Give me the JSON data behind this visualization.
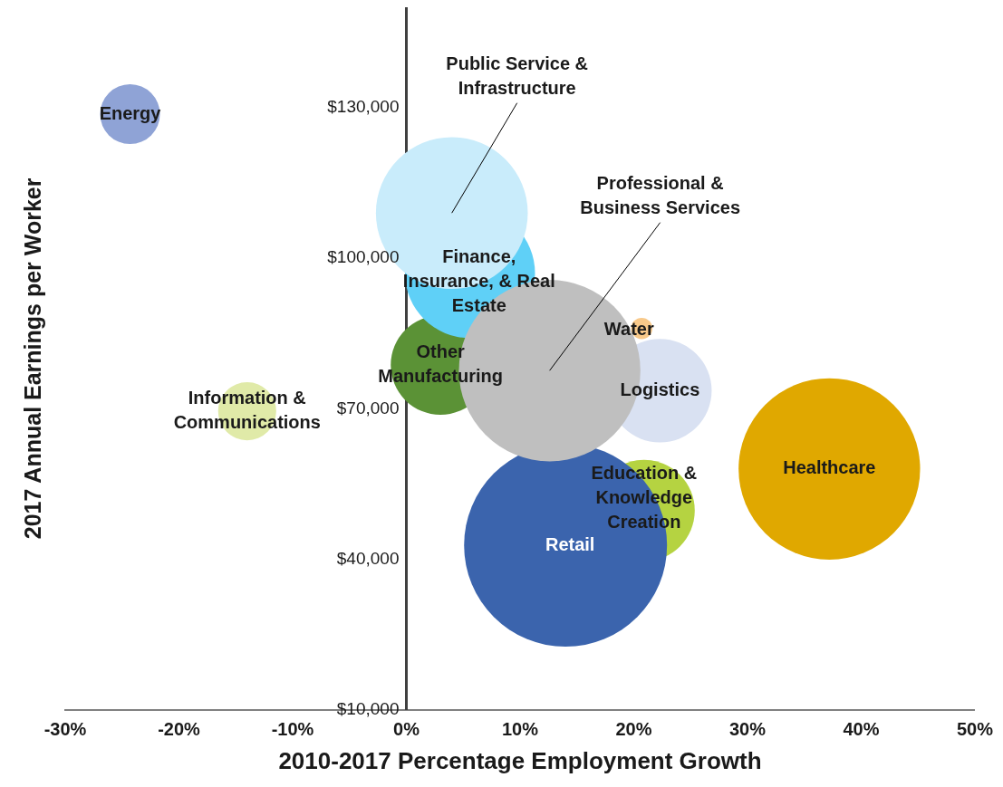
{
  "chart_data": {
    "type": "bubble",
    "xlabel": "2010-2017 Percentage Employment Growth",
    "ylabel": "2017 Annual Earnings per Worker",
    "xlim": [
      -30,
      50
    ],
    "xticks": [
      {
        "value": -30,
        "label": "-30%"
      },
      {
        "value": -20,
        "label": "-20%"
      },
      {
        "value": -10,
        "label": "-10%"
      },
      {
        "value": 0,
        "label": "0%"
      },
      {
        "value": 10,
        "label": "10%"
      },
      {
        "value": 20,
        "label": "20%"
      },
      {
        "value": 30,
        "label": "30%"
      },
      {
        "value": 40,
        "label": "40%"
      },
      {
        "value": 50,
        "label": "50%"
      }
    ],
    "ylim": [
      10000,
      150000
    ],
    "yticks": [
      {
        "value": 10000,
        "label": "$10,000"
      },
      {
        "value": 40000,
        "label": "$40,000"
      },
      {
        "value": 70000,
        "label": "$70,000"
      },
      {
        "value": 100000,
        "label": "$100,000"
      },
      {
        "value": 130000,
        "label": "$130,000"
      }
    ],
    "grid": false,
    "legend": false,
    "series": [
      {
        "name": "Energy",
        "color": "#8fa3d6",
        "x": [
          -24.3
        ],
        "values": [
          128700
        ],
        "sizes": [
          0.087
        ]
      },
      {
        "name": "Public Service & Infrastructure",
        "color": "#c9ecfb",
        "x": [
          4.0
        ],
        "values": [
          109000
        ],
        "sizes": [
          0.56
        ]
      },
      {
        "name": "Professional & Business Services",
        "color": "#bfbfbf",
        "x": [
          12.6
        ],
        "values": [
          77600
        ],
        "sizes": [
          0.8
        ]
      },
      {
        "name": "Finance, Insurance, & Real Estate",
        "color": "#5fd0f7",
        "x": [
          5.6
        ],
        "values": [
          97000
        ],
        "sizes": [
          0.41
        ]
      },
      {
        "name": "Water",
        "color": "#f8c98a",
        "x": [
          20.7
        ],
        "values": [
          86000
        ],
        "sizes": [
          0.011
        ]
      },
      {
        "name": "Logistics",
        "color": "#d9e1f2",
        "x": [
          22.3
        ],
        "values": [
          73600
        ],
        "sizes": [
          0.26
        ]
      },
      {
        "name": "Other Manufacturing",
        "color": "#5b9236",
        "x": [
          3.0
        ],
        "values": [
          78700
        ],
        "sizes": [
          0.24
        ]
      },
      {
        "name": "Information & Communications",
        "color": "#e0eaa8",
        "x": [
          -14.0
        ],
        "values": [
          69500
        ],
        "sizes": [
          0.082
        ]
      },
      {
        "name": "Healthcare",
        "color": "#e0a800",
        "x": [
          37.2
        ],
        "values": [
          58000
        ],
        "sizes": [
          0.8
        ]
      },
      {
        "name": "Retail",
        "color": "#3b64ad",
        "x": [
          14.0
        ],
        "values": [
          42800
        ],
        "sizes": [
          1
        ]
      },
      {
        "name": "Education & Knowledge Creation",
        "color": "#b5d341",
        "x": [
          20.9
        ],
        "values": [
          49700
        ],
        "sizes": [
          0.25
        ]
      }
    ]
  }
}
